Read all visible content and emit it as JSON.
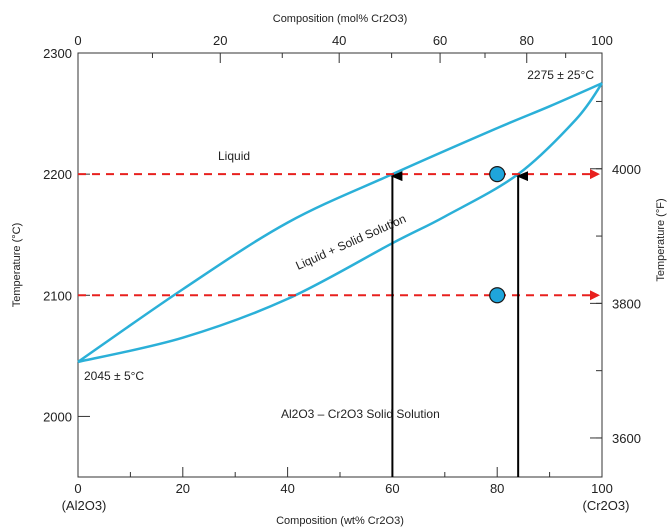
{
  "chart_data": {
    "type": "phase-diagram",
    "colors": {
      "curve": "#2bb0d8",
      "dashed_line": "#e8201e",
      "arrow": "#000000",
      "point_fill": "#1fa5dc",
      "frame": "#333333"
    },
    "axes": {
      "bottom": {
        "title": "Composition (wt% Cr2O3)",
        "range": [
          0,
          100
        ],
        "ticks": [
          {
            "value": 0,
            "label": "0"
          },
          {
            "value": 20,
            "label": "20"
          },
          {
            "value": 40,
            "label": "40"
          },
          {
            "value": 60,
            "label": "60"
          },
          {
            "value": 80,
            "label": "80"
          },
          {
            "value": 100,
            "label": "100"
          }
        ],
        "end_labels": {
          "left": "(Al2O3)",
          "right": "(Cr2O3)"
        }
      },
      "top": {
        "title": "Composition (mol% Cr2O3)",
        "range": [
          0,
          100
        ],
        "ticks": [
          {
            "value": 0,
            "label": "0"
          },
          {
            "value": 20,
            "label": "20"
          },
          {
            "value": 40,
            "label": "40"
          },
          {
            "value": 60,
            "label": "60"
          },
          {
            "value": 80,
            "label": "80"
          },
          {
            "value": 100,
            "label": "100"
          }
        ]
      },
      "left": {
        "title": "Temperature (°C)",
        "range": [
          1950,
          2300
        ],
        "ticks": [
          {
            "value": 2000,
            "label": "2000"
          },
          {
            "value": 2100,
            "label": "2100"
          },
          {
            "value": 2200,
            "label": "2200"
          },
          {
            "value": 2300,
            "label": "2300"
          }
        ]
      },
      "right": {
        "title": "Temperature (°F)",
        "ticks": [
          {
            "value": 3600,
            "label": "3600"
          },
          {
            "value": 3800,
            "label": "3800"
          },
          {
            "value": 4000,
            "label": "4000"
          }
        ]
      }
    },
    "curves": {
      "liquidus": [
        [
          0,
          2045
        ],
        [
          20,
          2105
        ],
        [
          40,
          2160
        ],
        [
          60,
          2200
        ],
        [
          80,
          2238
        ],
        [
          90,
          2256
        ],
        [
          100,
          2275
        ]
      ],
      "solidus": [
        [
          0,
          2045
        ],
        [
          20,
          2065
        ],
        [
          40,
          2097
        ],
        [
          60,
          2143
        ],
        [
          70,
          2165
        ],
        [
          84,
          2200
        ],
        [
          95,
          2245
        ],
        [
          100,
          2275
        ]
      ]
    },
    "annotations": {
      "melt_al2o3": "2045 ± 5°C",
      "melt_cr2o3": "2275 ± 25°C",
      "liquid": "Liquid",
      "two_phase": "Liquid + Solid Solution",
      "solid_solution": "Al2O3 – Cr2O3 Solid Solution"
    },
    "tie_lines": [
      {
        "temperature": 2200,
        "x_start": 0,
        "x_end": 100
      },
      {
        "temperature": 2100,
        "x_start": 0,
        "x_end": 100
      }
    ],
    "points": [
      {
        "x": 80,
        "temperature": 2200
      },
      {
        "x": 80,
        "temperature": 2100
      }
    ],
    "arrows": [
      {
        "x": 60,
        "temperature_from": 1950,
        "temperature_to": 2200
      },
      {
        "x": 84,
        "temperature_from": 1950,
        "temperature_to": 2200
      }
    ]
  }
}
